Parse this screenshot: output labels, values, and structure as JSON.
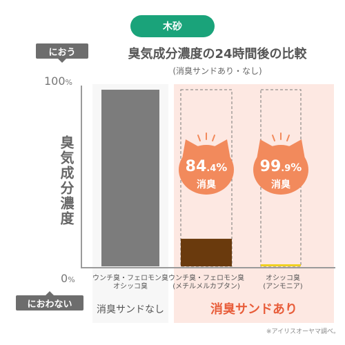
{
  "header": {
    "badge": "木砂"
  },
  "legend_tags": {
    "top": "におう",
    "bottom": "におわない"
  },
  "chart_data": {
    "type": "bar",
    "title": "臭気成分濃度の24時間後の比較",
    "subtitle": "(消臭サンドあり・なし)",
    "ylabel": "臭気成分濃度",
    "ylim": [
      0,
      100
    ],
    "y_ticks": [
      {
        "value": 100,
        "num": "100",
        "unit": "%"
      },
      {
        "value": 0,
        "num": "0",
        "unit": "%"
      }
    ],
    "categories": [
      [
        "ウンチ臭・フェロモン臭",
        "オシッコ臭"
      ],
      [
        "ウンチ臭・フェロモン臭",
        "(メチルメルカプタン)"
      ],
      [
        "オシッコ臭",
        "(アンモニア)"
      ]
    ],
    "values": [
      100,
      15.6,
      0.1
    ],
    "bar_colors": [
      "#7c7c7c",
      "#6a3a0d",
      "#f0d020"
    ],
    "groups": [
      {
        "label": "消臭サンドなし",
        "categories": [
          0
        ],
        "background": "#f7f7f7"
      },
      {
        "label": "消臭サンドあり",
        "categories": [
          1,
          2
        ],
        "background": "#fde8e2"
      }
    ],
    "reduction_badges": [
      {
        "category": 1,
        "num": "84",
        "dec": ".4",
        "unit": "%",
        "text": "消臭",
        "color": "#f28a5c"
      },
      {
        "category": 2,
        "num": "99",
        "dec": ".9",
        "unit": "%",
        "text": "消臭",
        "color": "#f28a5c"
      }
    ]
  },
  "footnote": "※アイリスオーヤマ調べ。"
}
